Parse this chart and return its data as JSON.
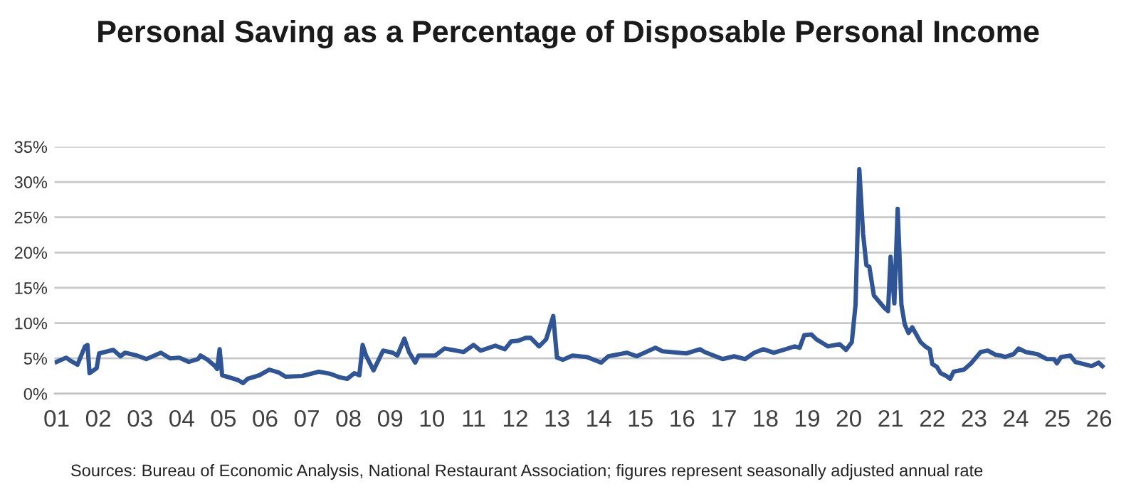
{
  "chart_data": {
    "type": "line",
    "title": "Personal Saving as a Percentage of Disposable Personal Income",
    "annotations": [
      "Sources: Bureau of Economic Analysis, National Restaurant Association; figures represent seasonally adjusted annual rate"
    ],
    "series": [
      {
        "color": "#2f5597",
        "x": [
          2001.0,
          2001.23,
          2001.35,
          2001.5,
          2001.68,
          2001.74,
          2001.79,
          2001.96,
          2002.02,
          2002.36,
          2002.53,
          2002.64,
          2002.93,
          2003.15,
          2003.5,
          2003.72,
          2003.94,
          2004.17,
          2004.39,
          2004.45,
          2004.62,
          2004.8,
          2004.85,
          2004.91,
          2004.97,
          2005.2,
          2005.36,
          2005.47,
          2005.58,
          2005.86,
          2006.1,
          2006.33,
          2006.49,
          2006.89,
          2007.29,
          2007.57,
          2007.8,
          2007.97,
          2008.14,
          2008.26,
          2008.34,
          2008.42,
          2008.6,
          2008.83,
          2009.06,
          2009.17,
          2009.34,
          2009.45,
          2009.6,
          2009.68,
          2009.85,
          2010.08,
          2010.3,
          2010.76,
          2011.0,
          2011.17,
          2011.52,
          2011.75,
          2011.9,
          2012.07,
          2012.25,
          2012.37,
          2012.57,
          2012.74,
          2012.91,
          2013.0,
          2013.14,
          2013.37,
          2013.71,
          2014.06,
          2014.23,
          2014.68,
          2014.91,
          2015.36,
          2015.53,
          2016.1,
          2016.43,
          2016.54,
          2016.97,
          2017.25,
          2017.51,
          2017.73,
          2017.95,
          2018.2,
          2018.48,
          2018.7,
          2018.82,
          2018.93,
          2019.1,
          2019.22,
          2019.5,
          2019.78,
          2019.93,
          2020.07,
          2020.16,
          2020.25,
          2020.34,
          2020.42,
          2020.49,
          2020.6,
          2020.86,
          2020.94,
          2021.0,
          2021.09,
          2021.17,
          2021.26,
          2021.34,
          2021.43,
          2021.52,
          2021.72,
          2021.83,
          2021.94,
          2022.0,
          2022.11,
          2022.2,
          2022.34,
          2022.43,
          2022.51,
          2022.76,
          2022.93,
          2023.16,
          2023.33,
          2023.52,
          2023.64,
          2023.75,
          2023.95,
          2024.07,
          2024.24,
          2024.52,
          2024.75,
          2024.92,
          2024.99,
          2025.09,
          2025.31,
          2025.43,
          2025.82,
          2025.99,
          2026.08
        ],
        "values": [
          4.5,
          5.1,
          4.6,
          4.1,
          6.7,
          6.9,
          2.9,
          3.6,
          5.7,
          6.2,
          5.3,
          5.8,
          5.4,
          4.9,
          5.8,
          5.0,
          5.1,
          4.5,
          4.9,
          5.4,
          4.8,
          3.9,
          3.5,
          6.3,
          2.6,
          2.2,
          1.9,
          1.5,
          2.1,
          2.6,
          3.4,
          3.0,
          2.4,
          2.5,
          3.1,
          2.8,
          2.3,
          2.1,
          2.9,
          2.6,
          6.9,
          5.4,
          3.3,
          6.1,
          5.8,
          5.4,
          7.8,
          5.9,
          4.4,
          5.4,
          5.4,
          5.4,
          6.4,
          5.9,
          6.9,
          6.1,
          6.8,
          6.3,
          7.4,
          7.5,
          7.9,
          7.9,
          6.7,
          7.7,
          11.0,
          5.1,
          4.8,
          5.4,
          5.2,
          4.4,
          5.3,
          5.8,
          5.3,
          6.5,
          6.0,
          5.7,
          6.3,
          5.9,
          4.9,
          5.3,
          4.9,
          5.8,
          6.3,
          5.8,
          6.3,
          6.7,
          6.5,
          8.3,
          8.4,
          7.7,
          6.7,
          7.0,
          6.2,
          7.3,
          12.6,
          31.8,
          22.7,
          18.2,
          18.0,
          13.9,
          12.1,
          11.7,
          19.4,
          12.8,
          26.2,
          12.6,
          9.8,
          8.6,
          9.4,
          7.3,
          6.7,
          6.3,
          4.2,
          3.8,
          2.9,
          2.5,
          2.1,
          3.1,
          3.4,
          4.3,
          5.9,
          6.1,
          5.5,
          5.4,
          5.2,
          5.6,
          6.4,
          5.9,
          5.6,
          4.9,
          4.9,
          4.3,
          5.2,
          5.4,
          4.5,
          3.9,
          4.4,
          3.9
        ]
      }
    ],
    "xlim": [
      2000.95,
      2026.15
    ],
    "xticks": [
      {
        "value": 2001,
        "label": "01"
      },
      {
        "value": 2002,
        "label": "02"
      },
      {
        "value": 2003,
        "label": "03"
      },
      {
        "value": 2004,
        "label": "04"
      },
      {
        "value": 2005,
        "label": "05"
      },
      {
        "value": 2006,
        "label": "06"
      },
      {
        "value": 2007,
        "label": "07"
      },
      {
        "value": 2008,
        "label": "08"
      },
      {
        "value": 2009,
        "label": "09"
      },
      {
        "value": 2010,
        "label": "10"
      },
      {
        "value": 2011,
        "label": "11"
      },
      {
        "value": 2012,
        "label": "12"
      },
      {
        "value": 2013,
        "label": "13"
      },
      {
        "value": 2014,
        "label": "14"
      },
      {
        "value": 2015,
        "label": "15"
      },
      {
        "value": 2016,
        "label": "16"
      },
      {
        "value": 2017,
        "label": "17"
      },
      {
        "value": 2018,
        "label": "18"
      },
      {
        "value": 2019,
        "label": "19"
      },
      {
        "value": 2020,
        "label": "20"
      },
      {
        "value": 2021,
        "label": "21"
      },
      {
        "value": 2022,
        "label": "22"
      },
      {
        "value": 2023,
        "label": "23"
      },
      {
        "value": 2024,
        "label": "24"
      },
      {
        "value": 2025,
        "label": "25"
      },
      {
        "value": 2026,
        "label": "26"
      }
    ],
    "ylim": [
      0,
      35
    ],
    "yticks": [
      {
        "value": 0,
        "label": "0%"
      },
      {
        "value": 5,
        "label": "5%"
      },
      {
        "value": 10,
        "label": "10%"
      },
      {
        "value": 15,
        "label": "15%"
      },
      {
        "value": 20,
        "label": "20%"
      },
      {
        "value": 25,
        "label": "25%"
      },
      {
        "value": 30,
        "label": "30%"
      },
      {
        "value": 35,
        "label": "35%"
      }
    ],
    "grid": "y",
    "legend": false,
    "marker": "none",
    "line_style": "solid"
  }
}
